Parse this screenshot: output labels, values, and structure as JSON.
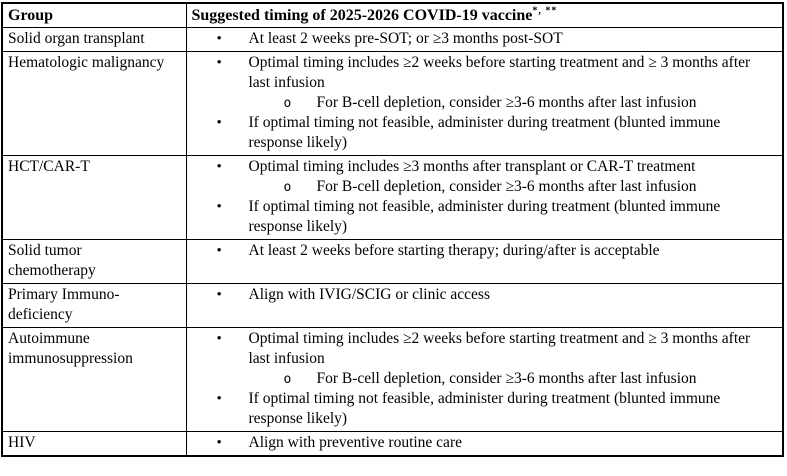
{
  "page": {
    "background": "#ffffff",
    "border_color": "#000000",
    "text_color": "#000000"
  },
  "table": {
    "header": {
      "group_label": "Group",
      "timing_label": "Suggested timing of 2025-2026 COVID-19 vaccine",
      "timing_superscript": "*, **"
    },
    "bullets": {
      "level1_glyph": "•",
      "level2_glyph": "o"
    },
    "rows": [
      {
        "group": "Solid organ transplant",
        "items": [
          {
            "level": 1,
            "text": "At least 2 weeks pre-SOT; or ≥3 months post-SOT"
          }
        ]
      },
      {
        "group": "Hematologic malignancy",
        "items": [
          {
            "level": 1,
            "text": "Optimal timing includes ≥2 weeks before starting treatment and ≥ 3 months after last infusion"
          },
          {
            "level": 2,
            "text": "For B-cell depletion, consider ≥3-6 months after last infusion"
          },
          {
            "level": 1,
            "text": "If optimal timing not feasible, administer during treatment (blunted immune response likely)"
          }
        ]
      },
      {
        "group": "HCT/CAR-T",
        "items": [
          {
            "level": 1,
            "text": "Optimal timing includes ≥3 months after transplant or CAR-T treatment"
          },
          {
            "level": 2,
            "text": "For B-cell depletion, consider ≥3-6 months after last infusion"
          },
          {
            "level": 1,
            "text": "If optimal timing not feasible, administer during treatment (blunted immune response likely)"
          }
        ]
      },
      {
        "group": "Solid tumor chemotherapy",
        "items": [
          {
            "level": 1,
            "text": "At least 2 weeks before starting therapy; during/after is acceptable"
          }
        ]
      },
      {
        "group": "Primary Immuno-deficiency",
        "items": [
          {
            "level": 1,
            "text": "Align with IVIG/SCIG or clinic access"
          }
        ]
      },
      {
        "group": "Autoimmune immunosuppression",
        "items": [
          {
            "level": 1,
            "text": "Optimal timing includes ≥2 weeks before starting treatment and ≥ 3 months after last infusion"
          },
          {
            "level": 2,
            "text": "For B-cell depletion, consider ≥3-6 months after last infusion"
          },
          {
            "level": 1,
            "text": "If optimal timing not feasible, administer during treatment (blunted immune response likely)"
          }
        ]
      },
      {
        "group": "HIV",
        "items": [
          {
            "level": 1,
            "text": "Align with preventive routine care"
          }
        ]
      }
    ]
  }
}
